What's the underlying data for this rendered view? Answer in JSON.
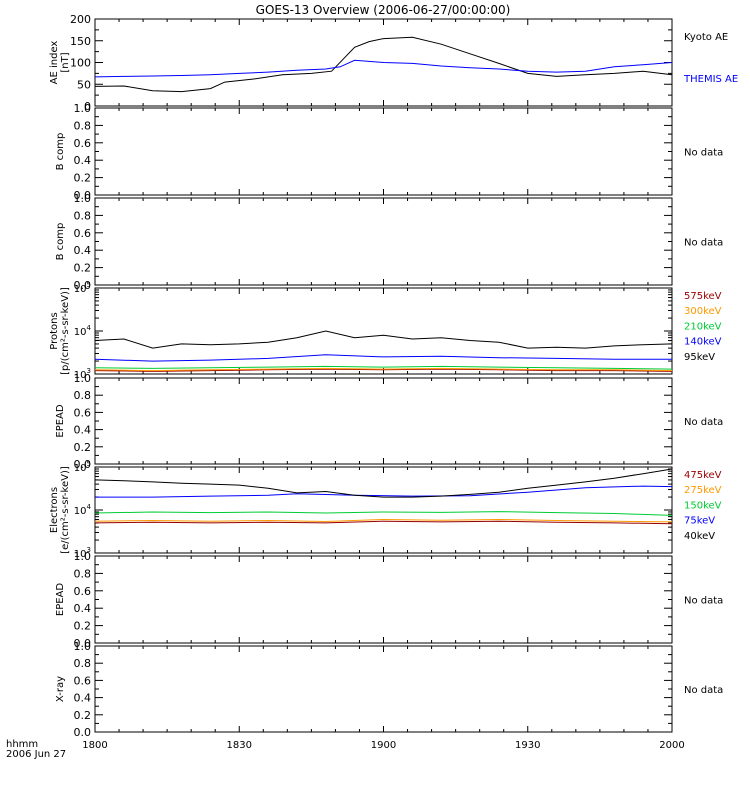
{
  "title": "GOES-13 Overview (2006-06-27/00:00:00)",
  "time_axis": {
    "label_line1": "hhmm",
    "label_line2": "2006 Jun 27",
    "ticks": [
      "1800",
      "1830",
      "1900",
      "1930",
      "2000"
    ],
    "range_hours": [
      18.0,
      20.0
    ]
  },
  "colors": {
    "black": "#000000",
    "blue": "#0000ff",
    "green": "#00cc33",
    "orange": "#ff9900",
    "darkred": "#990000"
  },
  "no_data_text": "No data",
  "chart_data": [
    {
      "id": "ae",
      "type": "line",
      "ylabel": [
        "AE index",
        "[nT]"
      ],
      "ylim": [
        0,
        200
      ],
      "yticks": [
        "0",
        "50",
        "100",
        "150",
        "200"
      ],
      "series": [
        {
          "name": "Kyoto AE",
          "color": "#000000",
          "x": [
            18.0,
            18.1,
            18.2,
            18.3,
            18.4,
            18.45,
            18.55,
            18.65,
            18.75,
            18.82,
            18.9,
            18.95,
            19.0,
            19.1,
            19.2,
            19.3,
            19.4,
            19.5,
            19.6,
            19.7,
            19.8,
            19.9,
            20.0
          ],
          "y": [
            45,
            46,
            35,
            33,
            40,
            55,
            62,
            72,
            75,
            80,
            135,
            148,
            155,
            158,
            142,
            120,
            98,
            75,
            68,
            72,
            75,
            80,
            72
          ]
        },
        {
          "name": "THEMIS AE",
          "color": "#0000ff",
          "x": [
            18.0,
            18.1,
            18.2,
            18.3,
            18.4,
            18.5,
            18.6,
            18.7,
            18.8,
            18.85,
            18.9,
            19.0,
            19.1,
            19.2,
            19.3,
            19.4,
            19.5,
            19.6,
            19.7,
            19.8,
            19.9,
            20.0
          ],
          "y": [
            67,
            68,
            69,
            70,
            72,
            75,
            78,
            82,
            85,
            90,
            105,
            100,
            98,
            92,
            88,
            85,
            80,
            78,
            80,
            90,
            95,
            100
          ]
        }
      ]
    },
    {
      "id": "bcomp1",
      "type": "empty",
      "ylabel": [
        "B comp"
      ],
      "ylim": [
        0,
        1
      ],
      "yticks": [
        "0.0",
        "0.2",
        "0.4",
        "0.6",
        "0.8",
        "1.0"
      ],
      "status": "No data"
    },
    {
      "id": "bcomp2",
      "type": "empty",
      "ylabel": [
        "B comp"
      ],
      "ylim": [
        0,
        1
      ],
      "yticks": [
        "0.0",
        "0.2",
        "0.4",
        "0.6",
        "0.8",
        "1.0"
      ],
      "status": "No data"
    },
    {
      "id": "protons",
      "type": "line",
      "log": true,
      "ylabel": [
        "Protons",
        "[p/(cm²-s-sr-keV)]"
      ],
      "ylim_exp": [
        3,
        5
      ],
      "ytick_exps": [
        3,
        4,
        5
      ],
      "series": [
        {
          "name": "575keV",
          "color": "#990000",
          "x": [
            18.0,
            18.2,
            18.4,
            18.6,
            18.8,
            19.0,
            19.2,
            19.4,
            19.6,
            19.8,
            20.0
          ],
          "y": [
            1200,
            1150,
            1200,
            1250,
            1300,
            1250,
            1300,
            1250,
            1200,
            1200,
            1150
          ]
        },
        {
          "name": "300keV",
          "color": "#ff9900",
          "x": [
            18.0,
            18.2,
            18.4,
            18.6,
            18.8,
            19.0,
            19.2,
            19.4,
            19.6,
            19.8,
            20.0
          ],
          "y": [
            1250,
            1200,
            1250,
            1300,
            1350,
            1300,
            1350,
            1300,
            1250,
            1250,
            1200
          ]
        },
        {
          "name": "210keV",
          "color": "#00cc33",
          "x": [
            18.0,
            18.2,
            18.4,
            18.6,
            18.8,
            19.0,
            19.2,
            19.4,
            19.6,
            19.8,
            20.0
          ],
          "y": [
            1400,
            1350,
            1400,
            1450,
            1500,
            1450,
            1500,
            1450,
            1400,
            1350,
            1300
          ]
        },
        {
          "name": "140keV",
          "color": "#0000ff",
          "x": [
            18.0,
            18.2,
            18.4,
            18.6,
            18.8,
            19.0,
            19.2,
            19.4,
            19.6,
            19.8,
            20.0
          ],
          "y": [
            2200,
            2000,
            2100,
            2300,
            2800,
            2500,
            2600,
            2400,
            2300,
            2200,
            2200
          ]
        },
        {
          "name": "95keV",
          "color": "#000000",
          "x": [
            18.0,
            18.1,
            18.2,
            18.3,
            18.4,
            18.5,
            18.6,
            18.7,
            18.8,
            18.9,
            19.0,
            19.1,
            19.2,
            19.3,
            19.4,
            19.5,
            19.6,
            19.7,
            19.8,
            19.9,
            20.0
          ],
          "y": [
            6000,
            6500,
            4000,
            5000,
            4800,
            5000,
            5500,
            7000,
            10000,
            7000,
            8000,
            6500,
            7000,
            6000,
            5500,
            4000,
            4200,
            4000,
            4500,
            4800,
            5000
          ]
        }
      ]
    },
    {
      "id": "epead1",
      "type": "empty",
      "ylabel": [
        "EPEAD"
      ],
      "ylim": [
        0,
        1
      ],
      "yticks": [
        "0.0",
        "0.2",
        "0.4",
        "0.6",
        "0.8",
        "1.0"
      ],
      "status": "No data"
    },
    {
      "id": "electrons",
      "type": "line",
      "log": true,
      "ylabel": [
        "Electrons",
        "[e/(cm²-s-sr-keV)]"
      ],
      "ylim_exp": [
        3,
        5
      ],
      "ytick_exps": [
        3,
        4,
        5
      ],
      "series": [
        {
          "name": "475keV",
          "color": "#990000",
          "x": [
            18.0,
            18.2,
            18.4,
            18.6,
            18.8,
            19.0,
            19.2,
            19.4,
            19.6,
            19.8,
            20.0
          ],
          "y": [
            5000,
            5200,
            5000,
            5200,
            5000,
            5500,
            5300,
            5500,
            5200,
            5000,
            4800
          ]
        },
        {
          "name": "275keV",
          "color": "#ff9900",
          "x": [
            18.0,
            18.2,
            18.4,
            18.6,
            18.8,
            19.0,
            19.2,
            19.4,
            19.6,
            19.8,
            20.0
          ],
          "y": [
            5500,
            5700,
            5500,
            5700,
            5400,
            6000,
            5800,
            6000,
            5700,
            5500,
            5300
          ]
        },
        {
          "name": "150keV",
          "color": "#00cc33",
          "x": [
            18.0,
            18.2,
            18.4,
            18.6,
            18.8,
            19.0,
            19.2,
            19.4,
            19.6,
            19.8,
            20.0
          ],
          "y": [
            8500,
            9000,
            8700,
            9000,
            8500,
            9000,
            8800,
            9200,
            8700,
            8300,
            7500
          ]
        },
        {
          "name": "75keV",
          "color": "#0000ff",
          "x": [
            18.0,
            18.2,
            18.4,
            18.6,
            18.7,
            18.9,
            19.1,
            19.3,
            19.5,
            19.7,
            19.9,
            20.0
          ],
          "y": [
            20000,
            20000,
            21000,
            22000,
            24000,
            22000,
            21000,
            21500,
            26000,
            33000,
            36000,
            35000
          ]
        },
        {
          "name": "40keV",
          "color": "#000000",
          "x": [
            18.0,
            18.1,
            18.2,
            18.3,
            18.4,
            18.5,
            18.6,
            18.7,
            18.8,
            18.9,
            19.0,
            19.1,
            19.2,
            19.3,
            19.4,
            19.5,
            19.6,
            19.7,
            19.8,
            19.9,
            20.0
          ],
          "y": [
            50000,
            48000,
            45000,
            42000,
            40000,
            38000,
            32000,
            25000,
            27000,
            22000,
            20000,
            20000,
            21000,
            23000,
            26000,
            32000,
            38000,
            45000,
            55000,
            70000,
            90000
          ]
        }
      ]
    },
    {
      "id": "epead2",
      "type": "empty",
      "ylabel": [
        "EPEAD"
      ],
      "ylim": [
        0,
        1
      ],
      "yticks": [
        "0.0",
        "0.2",
        "0.4",
        "0.6",
        "0.8",
        "1.0"
      ],
      "status": "No data"
    },
    {
      "id": "xray",
      "type": "empty",
      "ylabel": [
        "X-ray"
      ],
      "ylim": [
        0,
        1
      ],
      "yticks": [
        "0.0",
        "0.2",
        "0.4",
        "0.6",
        "0.8",
        "1.0"
      ],
      "status": "No data"
    }
  ]
}
